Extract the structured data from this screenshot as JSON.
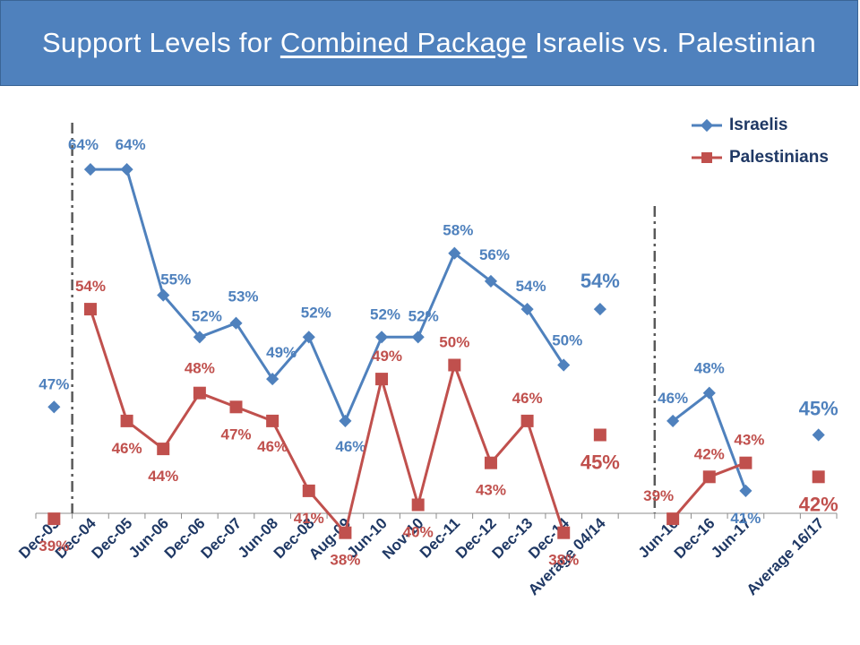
{
  "chart_data": {
    "type": "line",
    "title": {
      "prefix": "Support Levels for ",
      "underlined": "Combined Package",
      "suffix": " Israelis vs. Palestinian"
    },
    "categories": [
      "Dec-03",
      "Dec-04",
      "Dec-05",
      "Jun-06",
      "Dec-06",
      "Dec-07",
      "Jun-08",
      "Dec-08",
      "Aug-09",
      "Jun-10",
      "Nov-10",
      "Dec-11",
      "Dec-12",
      "Dec-13",
      "Dec-14",
      "Average 04/14",
      "",
      "Jun-16",
      "Dec-16",
      "Jun-17",
      "",
      "Average 16/17"
    ],
    "ylim": [
      30,
      70
    ],
    "series": [
      {
        "name": "Israelis",
        "color": "#4f81bd",
        "marker": "diamond",
        "values": [
          47,
          64,
          64,
          55,
          52,
          53,
          49,
          52,
          46,
          52,
          52,
          58,
          56,
          54,
          50,
          54,
          null,
          46,
          48,
          41,
          null,
          45
        ],
        "labels": [
          "47%",
          "64%",
          "64%",
          "55%",
          "52%",
          "53%",
          "49%",
          "52%",
          "46%",
          "52%",
          "52%",
          "58%",
          "56%",
          "54%",
          "50%",
          "54%",
          "",
          "46%",
          "48%",
          "41%",
          "",
          "45%"
        ],
        "connected_groups": [
          [
            1,
            14
          ],
          [
            17,
            19
          ]
        ]
      },
      {
        "name": "Palestinians",
        "color": "#c0504d",
        "marker": "square",
        "values": [
          39,
          54,
          46,
          44,
          48,
          47,
          46,
          41,
          38,
          49,
          40,
          50,
          43,
          46,
          38,
          45,
          null,
          39,
          42,
          43,
          null,
          42
        ],
        "labels": [
          "39%",
          "54%",
          "46%",
          "44%",
          "48%",
          "47%",
          "46%",
          "41%",
          "38%",
          "49%",
          "40%",
          "50%",
          "43%",
          "46%",
          "38%",
          "45%",
          "",
          "39%",
          "42%",
          "43%",
          "",
          "42%"
        ],
        "connected_groups": [
          [
            1,
            14
          ],
          [
            17,
            19
          ]
        ]
      }
    ],
    "bold_labels": [
      15,
      21
    ],
    "separators_after": [
      0,
      16
    ],
    "legend_position": "top-right"
  }
}
